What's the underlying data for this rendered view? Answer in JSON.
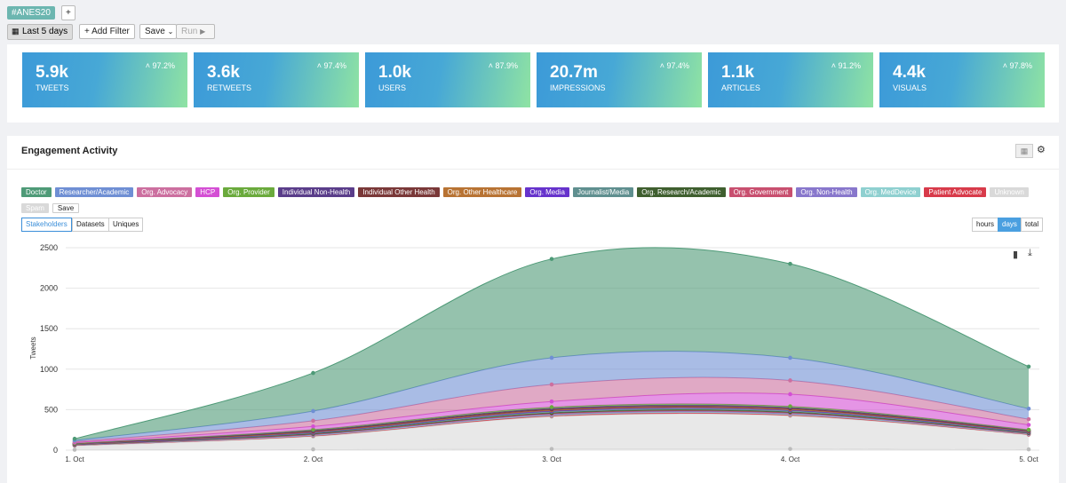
{
  "header": {
    "tag": "#ANES20",
    "add": "+",
    "date_range": "Last 5 days",
    "add_filter": "+ Add Filter",
    "save": "Save",
    "run": "Run"
  },
  "kpis": [
    {
      "value": "5.9k",
      "label": "TWEETS",
      "change": "97.2%"
    },
    {
      "value": "3.6k",
      "label": "RETWEETS",
      "change": "97.4%"
    },
    {
      "value": "1.0k",
      "label": "USERS",
      "change": "87.9%"
    },
    {
      "value": "20.7m",
      "label": "IMPRESSIONS",
      "change": "97.4%"
    },
    {
      "value": "1.1k",
      "label": "ARTICLES",
      "change": "91.2%"
    },
    {
      "value": "4.4k",
      "label": "VISUALS",
      "change": "97.8%"
    }
  ],
  "panel": {
    "title": "Engagement Activity",
    "legend_save": "Save",
    "tabs": [
      "Stakeholders",
      "Datasets",
      "Uniques"
    ],
    "granularity": [
      "hours",
      "days",
      "total"
    ]
  },
  "chart_data": {
    "type": "stacked-area",
    "y_label": "Tweets",
    "categories": [
      "1. Oct",
      "2. Oct",
      "3. Oct",
      "4. Oct",
      "5. Oct"
    ],
    "ylim": [
      0,
      2500
    ],
    "yticks": [
      0,
      500,
      1000,
      1500,
      2000,
      2500
    ],
    "grid": true,
    "series": [
      {
        "name": "Doctor",
        "color": "#4e9a77",
        "values": [
          20,
          470,
          1220,
          1160,
          520
        ]
      },
      {
        "name": "Researcher/Academic",
        "color": "#6f8fd4",
        "values": [
          15,
          120,
          330,
          280,
          130
        ]
      },
      {
        "name": "Org. Advocacy",
        "color": "#cc6f9f",
        "values": [
          10,
          70,
          210,
          170,
          70
        ]
      },
      {
        "name": "HCP",
        "color": "#d44fd4",
        "values": [
          10,
          40,
          70,
          150,
          60
        ]
      },
      {
        "name": "Org. Provider",
        "color": "#6aaa3c",
        "values": [
          3,
          10,
          15,
          15,
          8
        ]
      },
      {
        "name": "Individual Non-Health",
        "color": "#5a3d8a",
        "values": [
          3,
          8,
          12,
          12,
          6
        ]
      },
      {
        "name": "Individual Other Health",
        "color": "#7a3838",
        "values": [
          3,
          8,
          10,
          10,
          6
        ]
      },
      {
        "name": "Org. Other Healthcare",
        "color": "#b87333",
        "values": [
          3,
          8,
          10,
          10,
          6
        ]
      },
      {
        "name": "Org. Media",
        "color": "#6633cc",
        "values": [
          2,
          5,
          8,
          8,
          4
        ]
      },
      {
        "name": "Journalist/Media",
        "color": "#5f8f8f",
        "values": [
          3,
          10,
          15,
          15,
          8
        ]
      },
      {
        "name": "Org. Research/Academic",
        "color": "#3f5f2f",
        "values": [
          3,
          8,
          10,
          10,
          5
        ]
      },
      {
        "name": "Org. Government",
        "color": "#c84f6f",
        "values": [
          2,
          5,
          8,
          8,
          4
        ]
      },
      {
        "name": "Org. Non-Health",
        "color": "#8877cc",
        "values": [
          3,
          8,
          10,
          10,
          5
        ]
      },
      {
        "name": "Org. MedDevice",
        "color": "#8fd0d0",
        "values": [
          2,
          5,
          8,
          8,
          5
        ]
      },
      {
        "name": "Patient Advocate",
        "color": "#d83a4a",
        "values": [
          3,
          8,
          10,
          10,
          5
        ]
      },
      {
        "name": "Unknown",
        "color": "#d9d9d9",
        "values": [
          50,
          160,
          400,
          410,
          180
        ]
      },
      {
        "name": "Spam",
        "color": "#d9d9d9",
        "values": [
          5,
          10,
          15,
          15,
          10
        ]
      }
    ]
  }
}
